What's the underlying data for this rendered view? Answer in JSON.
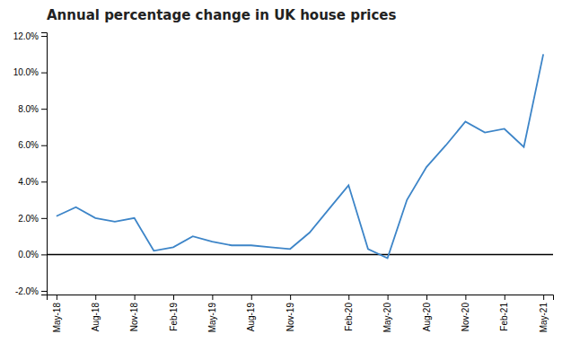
{
  "chart_data": {
    "type": "line",
    "title": "Annual percentage change in UK house prices",
    "color": "#3d85c8",
    "categories": [
      "May-18",
      null,
      "Aug-18",
      null,
      "Nov-18",
      null,
      "Feb-19",
      null,
      "May-19",
      null,
      "Aug-19",
      null,
      "Nov-19",
      null,
      null,
      "Feb-20",
      null,
      "May-20",
      null,
      "Aug-20",
      null,
      "Nov-20",
      null,
      "Feb-21",
      null,
      "May-21"
    ],
    "values": [
      0.021,
      0.026,
      0.02,
      0.018,
      0.02,
      0.002,
      0.004,
      0.01,
      0.007,
      0.005,
      0.005,
      0.004,
      0.003,
      0.012,
      0.025,
      0.038,
      0.003,
      -0.002,
      0.03,
      0.048,
      0.06,
      0.073,
      0.067,
      0.069,
      0.059,
      0.11
    ],
    "ylim": [
      -0.022,
      0.122
    ],
    "yticks": [
      {
        "value": -0.02,
        "label": "-2.0%"
      },
      {
        "value": 0.0,
        "label": "0.0%"
      },
      {
        "value": 0.02,
        "label": "2.0%"
      },
      {
        "value": 0.04,
        "label": "4.0%"
      },
      {
        "value": 0.06,
        "label": "6.0%"
      },
      {
        "value": 0.08,
        "label": "8.0%"
      },
      {
        "value": 0.1,
        "label": "10.0%"
      },
      {
        "value": 0.12,
        "label": "12.0%"
      }
    ],
    "grid": false
  }
}
